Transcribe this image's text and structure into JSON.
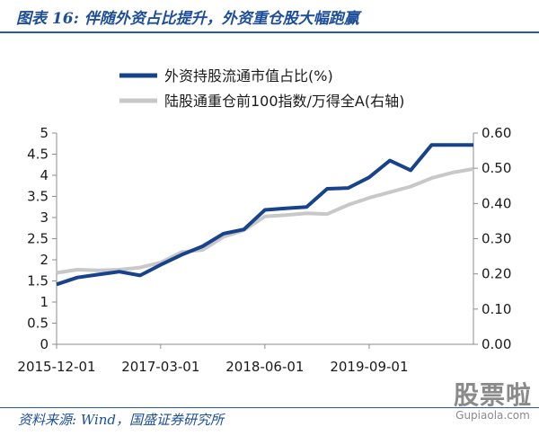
{
  "title": "图表 16: 伴随外资占比提升，外资重仓股大幅跑赢",
  "source": "资料来源: Wind，国盛证券研究所",
  "watermark": {
    "main": "股票啦",
    "sub": "Gupiaola.com"
  },
  "colors": {
    "accent": "#1d4e9a",
    "series1": "#17438c",
    "series2": "#c8c8c8"
  },
  "chart_data": {
    "type": "line",
    "title": "",
    "legend_placement": "top-center",
    "grid": false,
    "x_tick_labels": [
      "2015-12-01",
      "2017-03-01",
      "2018-06-01",
      "2019-09-01"
    ],
    "x_ticks": [
      "2015-12-01",
      "2017-03-01",
      "2018-06-01",
      "2019-09-01"
    ],
    "xlim": [
      "2015-12-01",
      "2020-12-01"
    ],
    "y_left": {
      "ylim": [
        0,
        5
      ],
      "ticks": [
        "0",
        "0.5",
        "1",
        "1.5",
        "2",
        "2.5",
        "3",
        "3.5",
        "4",
        "4.5",
        "5"
      ]
    },
    "y_right": {
      "ylim": [
        0,
        0.6
      ],
      "ticks": [
        "0.00",
        "0.10",
        "0.20",
        "0.30",
        "0.40",
        "0.50",
        "0.60"
      ]
    },
    "series": [
      {
        "name": "外资持股流通市值占比(%)",
        "axis": "left",
        "x": [
          "2015-12-01",
          "2016-03-01",
          "2016-06-01",
          "2016-09-01",
          "2016-12-01",
          "2017-03-01",
          "2017-06-01",
          "2017-09-01",
          "2017-12-01",
          "2018-03-01",
          "2018-06-01",
          "2018-09-01",
          "2018-12-01",
          "2019-03-01",
          "2019-06-01",
          "2019-09-01",
          "2019-12-01",
          "2020-03-01",
          "2020-06-01",
          "2020-09-01",
          "2020-12-01"
        ],
        "values": [
          1.42,
          1.58,
          1.65,
          1.72,
          1.63,
          1.88,
          2.12,
          2.32,
          2.62,
          2.72,
          3.18,
          3.22,
          3.25,
          3.68,
          3.7,
          3.95,
          4.35,
          4.12,
          4.72,
          4.72,
          4.72
        ]
      },
      {
        "name": "陆股通重仓前100指数/万得全A(右轴)",
        "axis": "right",
        "x": [
          "2015-12-01",
          "2016-03-01",
          "2016-06-01",
          "2016-09-01",
          "2016-12-01",
          "2017-03-01",
          "2017-06-01",
          "2017-09-01",
          "2017-12-01",
          "2018-03-01",
          "2018-06-01",
          "2018-09-01",
          "2018-12-01",
          "2019-03-01",
          "2019-06-01",
          "2019-09-01",
          "2019-12-01",
          "2020-03-01",
          "2020-06-01",
          "2020-09-01",
          "2020-12-01"
        ],
        "values": [
          0.203,
          0.212,
          0.21,
          0.212,
          0.218,
          0.232,
          0.262,
          0.268,
          0.305,
          0.324,
          0.363,
          0.367,
          0.372,
          0.37,
          0.396,
          0.416,
          0.432,
          0.448,
          0.472,
          0.488,
          0.498
        ]
      }
    ]
  }
}
